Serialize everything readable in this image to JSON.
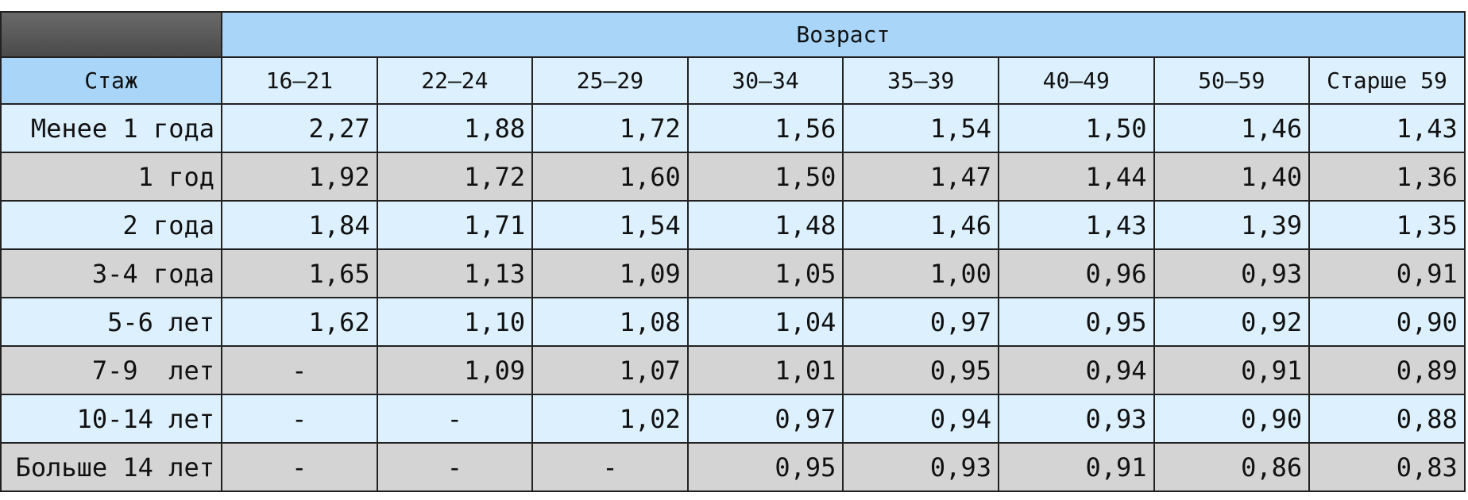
{
  "table": {
    "group_header": "Возраст",
    "row_header": "Стаж",
    "columns": [
      "16–21",
      "22–24",
      "25–29",
      "30–34",
      "35–39",
      "40–49",
      "50–59",
      "Старше 59"
    ],
    "rows": [
      {
        "label": "Менее 1 года",
        "cells": [
          "2,27",
          "1,88",
          "1,72",
          "1,56",
          "1,54",
          "1,50",
          "1,46",
          "1,43"
        ]
      },
      {
        "label": "1 год",
        "cells": [
          "1,92",
          "1,72",
          "1,60",
          "1,50",
          "1,47",
          "1,44",
          "1,40",
          "1,36"
        ]
      },
      {
        "label": "2 года",
        "cells": [
          "1,84",
          "1,71",
          "1,54",
          "1,48",
          "1,46",
          "1,43",
          "1,39",
          "1,35"
        ]
      },
      {
        "label": "3-4 года",
        "cells": [
          "1,65",
          "1,13",
          "1,09",
          "1,05",
          "1,00",
          "0,96",
          "0,93",
          "0,91"
        ]
      },
      {
        "label": "5-6 лет",
        "cells": [
          "1,62",
          "1,10",
          "1,08",
          "1,04",
          "0,97",
          "0,95",
          "0,92",
          "0,90"
        ]
      },
      {
        "label": "7-9  лет",
        "cells": [
          "-",
          "1,09",
          "1,07",
          "1,01",
          "0,95",
          "0,94",
          "0,91",
          "0,89"
        ]
      },
      {
        "label": "10-14 лет",
        "cells": [
          "-",
          "-",
          "1,02",
          "0,97",
          "0,94",
          "0,93",
          "0,90",
          "0,88"
        ]
      },
      {
        "label": "Больше 14 лет",
        "cells": [
          "-",
          "-",
          "-",
          "0,95",
          "0,93",
          "0,91",
          "0,86",
          "0,83"
        ]
      }
    ]
  }
}
